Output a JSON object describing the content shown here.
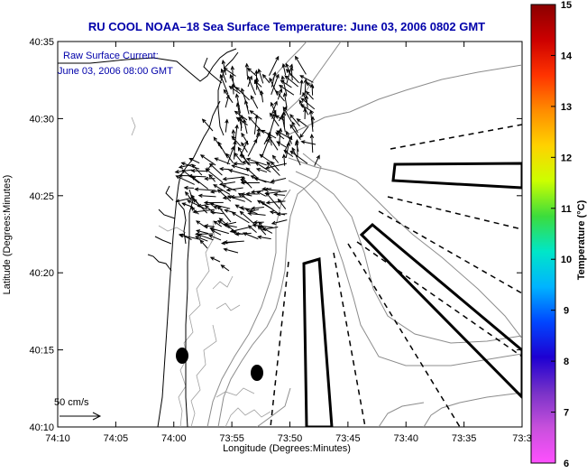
{
  "title": "RU COOL  NOAA–18  Sea Surface Temperature:  June 03, 2006 0802 GMT",
  "overlay": {
    "line1": "Raw Surface Current:",
    "line2": "June 03, 2006 08:00 GMT"
  },
  "scale_label": "50 cm/s",
  "axes": {
    "xlabel": "Longitude (Degrees:Minutes)",
    "ylabel": "Latitude (Degrees:Minutes)",
    "x_ticks": [
      "74:10",
      "74:05",
      "74:00",
      "73:55",
      "73:50",
      "73:45",
      "73:40",
      "73:35",
      "73:3"
    ],
    "y_ticks": [
      "40:35",
      "40:30",
      "40:25",
      "40:20",
      "40:15",
      "40:10"
    ]
  },
  "colorbar": {
    "label": "Temperature (°C)",
    "ticks": [
      "15",
      "14",
      "13",
      "12",
      "11",
      "10",
      "9",
      "8",
      "7",
      "6"
    ],
    "colors": [
      "#8b0000",
      "#cc0000",
      "#ff3300",
      "#ff8c00",
      "#ffd200",
      "#ccff00",
      "#3cdc3c",
      "#00e6c8",
      "#00b4ff",
      "#0046ff",
      "#1e00d2",
      "#7832c8",
      "#c850dc",
      "#ff50ff"
    ]
  }
}
